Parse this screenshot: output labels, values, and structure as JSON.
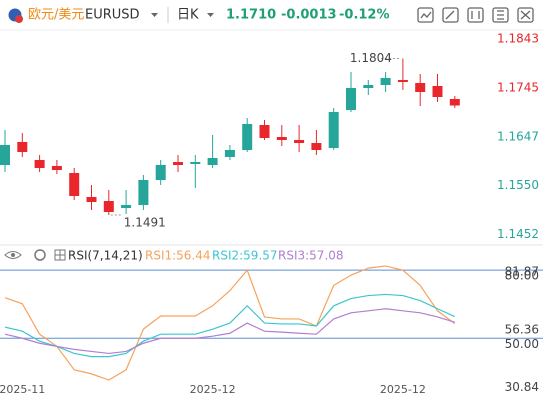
{
  "header": {
    "symbol": "欧元/美元",
    "code": "EURUSD",
    "period": "日K",
    "price": "1.1710",
    "change": "-0.0013",
    "change_pct": "-0.12%"
  },
  "chart_data": [
    {
      "type": "candlestick",
      "categories": [
        null,
        "2025-11",
        null,
        null,
        null,
        null,
        null,
        null,
        null,
        null,
        null,
        null,
        "2025-12",
        null,
        null,
        null,
        null,
        null,
        null,
        null,
        null,
        null,
        null,
        "2025-12",
        null,
        null,
        null
      ],
      "open": [
        1.1591,
        1.1637,
        1.1601,
        1.1589,
        1.1575,
        1.1527,
        1.1519,
        1.1505,
        1.1511,
        1.1561,
        1.1597,
        1.1593,
        1.1591,
        1.1607,
        1.1621,
        1.1671,
        1.1647,
        1.1641,
        1.1635,
        1.1625,
        1.1701,
        1.1745,
        1.1751,
        1.1761,
        1.1755,
        1.1749,
        1.1723
      ],
      "high": [
        1.1661,
        1.1655,
        1.1611,
        1.1601,
        1.1585,
        1.1551,
        1.1541,
        1.1541,
        1.1571,
        1.1601,
        1.1611,
        1.1611,
        1.1651,
        1.1631,
        1.1685,
        1.1681,
        1.1671,
        1.1671,
        1.1661,
        1.1705,
        1.1777,
        1.1761,
        1.1777,
        1.1804,
        1.1773,
        1.1773,
        1.1729
      ],
      "low": [
        1.1577,
        1.1607,
        1.1577,
        1.1573,
        1.1521,
        1.1501,
        1.1491,
        1.1493,
        1.1501,
        1.1551,
        1.1577,
        1.1545,
        1.1585,
        1.1601,
        1.1617,
        1.1641,
        1.1629,
        1.1617,
        1.1611,
        1.1621,
        1.1697,
        1.1731,
        1.1737,
        1.1741,
        1.1709,
        1.1717,
        1.1705
      ],
      "close": [
        1.1631,
        1.1617,
        1.1585,
        1.1581,
        1.1529,
        1.1517,
        1.1497,
        1.1511,
        1.1561,
        1.1591,
        1.1591,
        1.1597,
        1.1605,
        1.1621,
        1.1673,
        1.1645,
        1.1641,
        1.1635,
        1.1621,
        1.1697,
        1.1745,
        1.1751,
        1.1765,
        1.1757,
        1.1737,
        1.1727,
        1.171
      ],
      "up_color": "#26a69a",
      "down_color": "#e8262b",
      "ylim": [
        1.1431,
        1.1861
      ],
      "yticks": [
        1.1843,
        1.1745,
        1.1647,
        {
          "value": 1.155,
          "label": "1.1550"
        },
        1.1452
      ],
      "annotations": [
        "1.1804",
        "1.1491"
      ]
    },
    {
      "type": "line",
      "title": "RSI(7,14,21)",
      "series": [
        {
          "name": "RSI1:56.44",
          "color": "#f5a35c",
          "values": [
            67.9,
            65.2,
            51.8,
            46.4,
            36.1,
            34.3,
            31.6,
            36.1,
            54.0,
            59.8,
            59.8,
            59.8,
            64.3,
            71.0,
            80.0,
            59.4,
            58.5,
            58.5,
            55.4,
            73.3,
            77.8,
            80.9,
            81.87,
            80.0,
            73.3,
            62.1,
            56.44
          ]
        },
        {
          "name": "RSI2:59.57",
          "color": "#3cc6d0",
          "values": [
            54.9,
            53.1,
            48.7,
            46.4,
            43.3,
            41.9,
            41.9,
            43.3,
            48.7,
            51.8,
            51.8,
            51.8,
            54.0,
            56.7,
            64.3,
            56.7,
            56.3,
            56.3,
            55.4,
            64.3,
            67.5,
            68.8,
            69.3,
            68.8,
            66.6,
            63.0,
            59.57
          ]
        },
        {
          "name": "RSI3:57.08",
          "color": "#b07fd0",
          "values": [
            51.8,
            50.0,
            47.8,
            46.4,
            45.1,
            44.2,
            43.3,
            44.2,
            47.8,
            50.0,
            50.0,
            50.0,
            50.9,
            52.2,
            56.7,
            53.1,
            52.7,
            52.2,
            51.8,
            58.5,
            61.2,
            62.1,
            63.0,
            62.1,
            61.2,
            59.4,
            57.08
          ]
        }
      ],
      "ylim": [
        29.4,
        83.6
      ],
      "yticks": [
        81.87,
        {
          "value": 80,
          "label": "80.00"
        },
        56.36,
        {
          "value": 50,
          "label": "50.00"
        },
        30.84
      ],
      "levels": [
        80,
        50
      ],
      "level_color": "#5b8fd6"
    }
  ]
}
